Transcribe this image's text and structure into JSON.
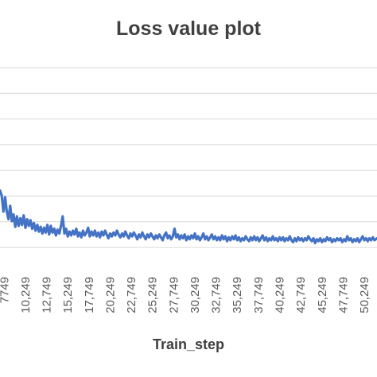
{
  "chart_data": {
    "type": "line",
    "title": "Loss value plot",
    "xlabel": "Train_step",
    "ylabel": "",
    "x_tick_labels": [
      "7749",
      "10,249",
      "12,749",
      "15,249",
      "17,749",
      "20,249",
      "22,749",
      "25,249",
      "27,749",
      "30,249",
      "32,749",
      "35,249",
      "37,749",
      "40,249",
      "42,749",
      "45,249",
      "47,749",
      "50,249"
    ],
    "x_tick_values": [
      7749,
      10249,
      12749,
      15249,
      17749,
      20249,
      22749,
      25249,
      27749,
      30249,
      32749,
      35249,
      37749,
      40249,
      42749,
      45249,
      47749,
      50249
    ],
    "xlim": [
      7249,
      51749
    ],
    "gridline_count": 8,
    "grid": true,
    "line_color": "#4472c4",
    "series": [
      {
        "values": [
          [
            7249,
            0.42
          ],
          [
            7449,
            0.37
          ],
          [
            7649,
            0.2
          ],
          [
            7849,
            0.35
          ],
          [
            8049,
            0.2
          ],
          [
            8249,
            0.12
          ],
          [
            8449,
            0.26
          ],
          [
            8649,
            0.1
          ],
          [
            8849,
            0.17
          ],
          [
            9049,
            0.04
          ],
          [
            9249,
            0.15
          ],
          [
            9449,
            0.05
          ],
          [
            9649,
            0.13
          ],
          [
            9849,
            0.06
          ],
          [
            10049,
            0.16
          ],
          [
            10249,
            0.03
          ],
          [
            10449,
            0.12
          ],
          [
            10649,
            0.05
          ],
          [
            10849,
            0.11
          ],
          [
            11049,
            0.02
          ],
          [
            11249,
            0.08
          ],
          [
            11449,
            0.0
          ],
          [
            11649,
            0.06
          ],
          [
            11849,
            -0.01
          ],
          [
            12049,
            0.04
          ],
          [
            12249,
            -0.03
          ],
          [
            12449,
            0.03
          ],
          [
            12649,
            -0.02
          ],
          [
            12849,
            0.06
          ],
          [
            13049,
            -0.04
          ],
          [
            13249,
            0.05
          ],
          [
            13449,
            -0.02
          ],
          [
            13649,
            0.02
          ],
          [
            13849,
            -0.05
          ],
          [
            14049,
            0.01
          ],
          [
            14249,
            -0.03
          ],
          [
            14449,
            0.05
          ],
          [
            14649,
            0.15
          ],
          [
            14849,
            -0.03
          ],
          [
            15049,
            0.02
          ],
          [
            15249,
            -0.06
          ],
          [
            15449,
            -0.01
          ],
          [
            15649,
            -0.05
          ],
          [
            15849,
            0.0
          ],
          [
            16049,
            -0.04
          ],
          [
            16249,
            0.02
          ],
          [
            16449,
            -0.06
          ],
          [
            16649,
            -0.02
          ],
          [
            16849,
            -0.07
          ],
          [
            17049,
            0.0
          ],
          [
            17249,
            -0.05
          ],
          [
            17449,
            -0.02
          ],
          [
            17649,
            0.03
          ],
          [
            17849,
            -0.06
          ],
          [
            18049,
            -0.01
          ],
          [
            18249,
            -0.05
          ],
          [
            18449,
            0.0
          ],
          [
            18649,
            -0.06
          ],
          [
            18849,
            -0.02
          ],
          [
            19049,
            -0.07
          ],
          [
            19249,
            -0.01
          ],
          [
            19449,
            -0.05
          ],
          [
            19649,
            0.0
          ],
          [
            19849,
            -0.04
          ],
          [
            20049,
            -0.08
          ],
          [
            20249,
            -0.03
          ],
          [
            20449,
            -0.06
          ],
          [
            20649,
            -0.02
          ],
          [
            20849,
            -0.05
          ],
          [
            21049,
            0.0
          ],
          [
            21249,
            -0.04
          ],
          [
            21449,
            -0.07
          ],
          [
            21649,
            -0.03
          ],
          [
            21849,
            -0.06
          ],
          [
            22049,
            -0.01
          ],
          [
            22249,
            -0.05
          ],
          [
            22449,
            -0.08
          ],
          [
            22649,
            -0.03
          ],
          [
            22849,
            -0.06
          ],
          [
            23049,
            -0.02
          ],
          [
            23249,
            -0.05
          ],
          [
            23449,
            -0.09
          ],
          [
            23649,
            -0.04
          ],
          [
            23849,
            -0.07
          ],
          [
            24049,
            -0.02
          ],
          [
            24249,
            -0.06
          ],
          [
            24449,
            -0.09
          ],
          [
            24649,
            -0.04
          ],
          [
            24849,
            -0.07
          ],
          [
            25049,
            -0.03
          ],
          [
            25249,
            -0.06
          ],
          [
            25449,
            -0.09
          ],
          [
            25649,
            -0.05
          ],
          [
            25849,
            -0.08
          ],
          [
            26049,
            -0.04
          ],
          [
            26249,
            -0.07
          ],
          [
            26449,
            -0.1
          ],
          [
            26649,
            -0.05
          ],
          [
            26849,
            -0.02
          ],
          [
            27049,
            -0.08
          ],
          [
            27249,
            -0.05
          ],
          [
            27449,
            -0.09
          ],
          [
            27649,
            -0.06
          ],
          [
            27849,
            0.02
          ],
          [
            28049,
            -0.07
          ],
          [
            28249,
            -0.04
          ],
          [
            28449,
            -0.09
          ],
          [
            28649,
            -0.05
          ],
          [
            28849,
            -0.08
          ],
          [
            29049,
            -0.04
          ],
          [
            29249,
            -0.1
          ],
          [
            29449,
            -0.06
          ],
          [
            29649,
            -0.09
          ],
          [
            29849,
            -0.05
          ],
          [
            30049,
            -0.08
          ],
          [
            30249,
            -0.03
          ],
          [
            30449,
            -0.09
          ],
          [
            30649,
            -0.06
          ],
          [
            30849,
            -0.1
          ],
          [
            31049,
            -0.07
          ],
          [
            31249,
            -0.03
          ],
          [
            31449,
            -0.09
          ],
          [
            31649,
            -0.06
          ],
          [
            31849,
            -0.1
          ],
          [
            32049,
            -0.07
          ],
          [
            32249,
            -0.04
          ],
          [
            32449,
            -0.09
          ],
          [
            32649,
            -0.06
          ],
          [
            32849,
            -0.1
          ],
          [
            33049,
            -0.07
          ],
          [
            33249,
            -0.1
          ],
          [
            33449,
            -0.05
          ],
          [
            33649,
            -0.09
          ],
          [
            33849,
            -0.06
          ],
          [
            34049,
            -0.11
          ],
          [
            34249,
            -0.07
          ],
          [
            34449,
            -0.1
          ],
          [
            34649,
            -0.06
          ],
          [
            34849,
            -0.09
          ],
          [
            35049,
            -0.05
          ],
          [
            35249,
            -0.1
          ],
          [
            35449,
            -0.07
          ],
          [
            35649,
            -0.11
          ],
          [
            35849,
            -0.08
          ],
          [
            36049,
            -0.1
          ],
          [
            36249,
            -0.06
          ],
          [
            36449,
            -0.09
          ],
          [
            36649,
            -0.11
          ],
          [
            36849,
            -0.07
          ],
          [
            37049,
            -0.1
          ],
          [
            37249,
            -0.06
          ],
          [
            37449,
            -0.1
          ],
          [
            37649,
            -0.07
          ],
          [
            37849,
            -0.11
          ],
          [
            38049,
            -0.08
          ],
          [
            38249,
            -0.05
          ],
          [
            38449,
            -0.1
          ],
          [
            38649,
            -0.07
          ],
          [
            38849,
            -0.11
          ],
          [
            39049,
            -0.08
          ],
          [
            39249,
            -0.1
          ],
          [
            39449,
            -0.06
          ],
          [
            39649,
            -0.1
          ],
          [
            39849,
            -0.08
          ],
          [
            40049,
            -0.11
          ],
          [
            40249,
            -0.07
          ],
          [
            40449,
            -0.1
          ],
          [
            40649,
            -0.07
          ],
          [
            40849,
            -0.11
          ],
          [
            41049,
            -0.08
          ],
          [
            41249,
            -0.1
          ],
          [
            41449,
            -0.06
          ],
          [
            41649,
            -0.1
          ],
          [
            41849,
            -0.12
          ],
          [
            42049,
            -0.08
          ],
          [
            42249,
            -0.11
          ],
          [
            42449,
            -0.07
          ],
          [
            42649,
            -0.1
          ],
          [
            42849,
            -0.08
          ],
          [
            43049,
            -0.11
          ],
          [
            43249,
            -0.08
          ],
          [
            43449,
            -0.1
          ],
          [
            43649,
            -0.06
          ],
          [
            43849,
            -0.09
          ],
          [
            44049,
            -0.11
          ],
          [
            44249,
            -0.08
          ],
          [
            44449,
            -0.13
          ],
          [
            44649,
            -0.09
          ],
          [
            44849,
            -0.11
          ],
          [
            45049,
            -0.08
          ],
          [
            45249,
            -0.12
          ],
          [
            45449,
            -0.09
          ],
          [
            45649,
            -0.11
          ],
          [
            45849,
            -0.07
          ],
          [
            46049,
            -0.1
          ],
          [
            46249,
            -0.08
          ],
          [
            46449,
            -0.12
          ],
          [
            46649,
            -0.09
          ],
          [
            46849,
            -0.11
          ],
          [
            47049,
            -0.08
          ],
          [
            47249,
            -0.1
          ],
          [
            47449,
            -0.08
          ],
          [
            47649,
            -0.12
          ],
          [
            47849,
            -0.09
          ],
          [
            48049,
            -0.11
          ],
          [
            48249,
            -0.06
          ],
          [
            48449,
            -0.1
          ],
          [
            48649,
            -0.08
          ],
          [
            48849,
            -0.12
          ],
          [
            49049,
            -0.09
          ],
          [
            49249,
            -0.11
          ],
          [
            49449,
            -0.08
          ],
          [
            49649,
            -0.12
          ],
          [
            49849,
            -0.09
          ],
          [
            50049,
            -0.06
          ],
          [
            50249,
            -0.1
          ],
          [
            50449,
            -0.08
          ],
          [
            50649,
            -0.11
          ],
          [
            50849,
            -0.08
          ],
          [
            51049,
            -0.1
          ],
          [
            51249,
            -0.07
          ],
          [
            51449,
            -0.1
          ],
          [
            51749,
            -0.08
          ]
        ]
      }
    ]
  }
}
